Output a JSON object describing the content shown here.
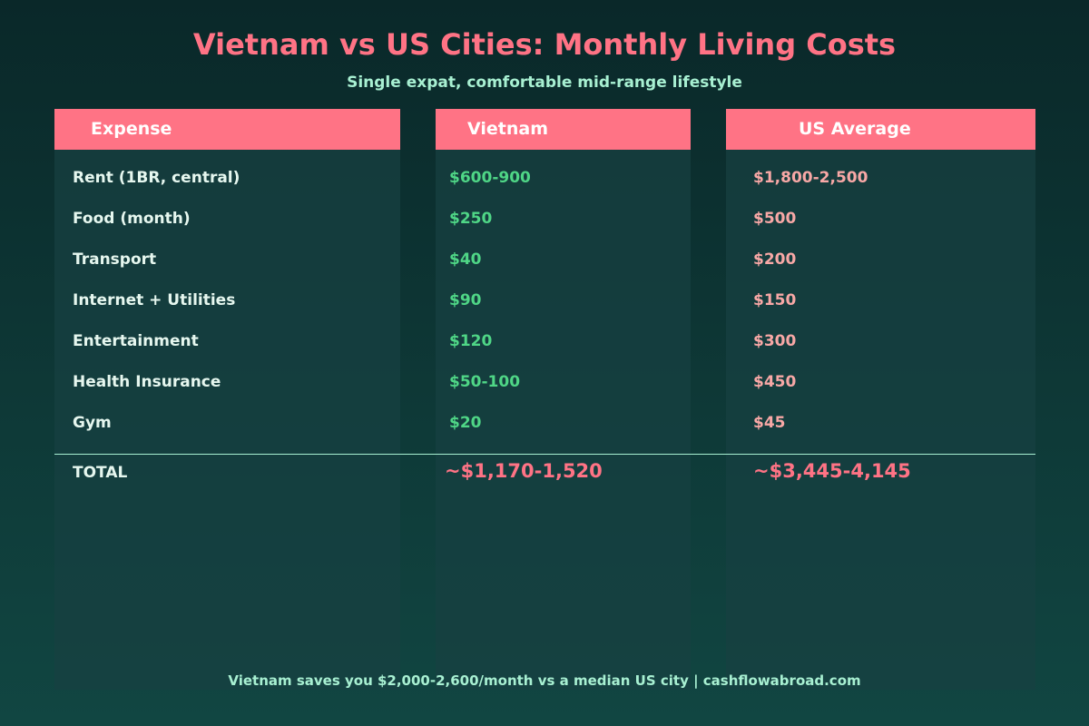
{
  "title": "Vietnam vs US Cities: Monthly Living Costs",
  "subtitle": "Single expat, comfortable mid-range lifestyle",
  "colors": {
    "accent": "#ff7385",
    "mint": "#a8f0d2",
    "row_label": "#e6f7ef",
    "vietnam_value": "#4fd686",
    "us_value": "#f8a8a6",
    "header_text": "#ffffff"
  },
  "table": {
    "headers": [
      "Expense",
      "Vietnam",
      "US Average"
    ],
    "rows": [
      {
        "label": "Rent (1BR, central)",
        "vietnam": "$600-900",
        "us": "$1,800-2,500"
      },
      {
        "label": "Food (month)",
        "vietnam": "$250",
        "us": "$500"
      },
      {
        "label": "Transport",
        "vietnam": "$40",
        "us": "$200"
      },
      {
        "label": "Internet + Utilities",
        "vietnam": "$90",
        "us": "$150"
      },
      {
        "label": "Entertainment",
        "vietnam": "$120",
        "us": "$300"
      },
      {
        "label": "Health Insurance",
        "vietnam": "$50-100",
        "us": "$450"
      },
      {
        "label": "Gym",
        "vietnam": "$20",
        "us": "$45"
      }
    ],
    "total": {
      "label": "TOTAL",
      "vietnam": "~$1,170-1,520",
      "us": "~$3,445-4,145"
    }
  },
  "footer": "Vietnam saves you $2,000-2,600/month vs a median US city | cashflowabroad.com"
}
